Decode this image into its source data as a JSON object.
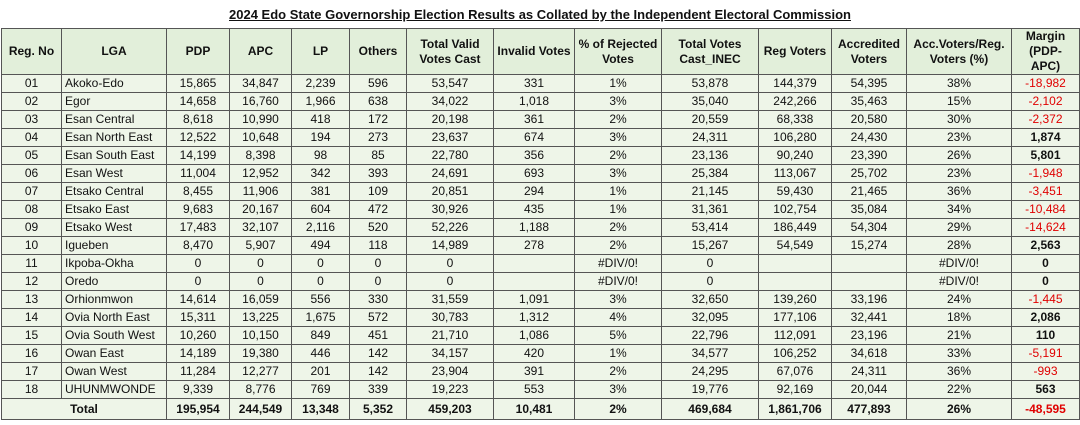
{
  "header": {
    "title": "2024 Edo State Governorship Election Results as Collated by the Independent Electoral Commission"
  },
  "table": {
    "columns": [
      "Reg. No",
      "LGA",
      "PDP",
      "APC",
      "LP",
      "Others",
      "Total Valid Votes Cast",
      "Invalid Votes",
      "% of Rejected Votes",
      "Total Votes Cast_INEC",
      "Reg Voters",
      "Accredited Voters",
      "Acc.Voters/Reg. Voters (%)",
      "Margin (PDP-APC)"
    ],
    "rows": [
      [
        "01",
        "Akoko-Edo",
        "15,865",
        "34,847",
        "2,239",
        "596",
        "53,547",
        "331",
        "1%",
        "53,878",
        "144,379",
        "54,395",
        "38%",
        "-18,982"
      ],
      [
        "02",
        "Egor",
        "14,658",
        "16,760",
        "1,966",
        "638",
        "34,022",
        "1,018",
        "3%",
        "35,040",
        "242,266",
        "35,463",
        "15%",
        "-2,102"
      ],
      [
        "03",
        "Esan Central",
        "8,618",
        "10,990",
        "418",
        "172",
        "20,198",
        "361",
        "2%",
        "20,559",
        "68,338",
        "20,580",
        "30%",
        "-2,372"
      ],
      [
        "04",
        "Esan North East",
        "12,522",
        "10,648",
        "194",
        "273",
        "23,637",
        "674",
        "3%",
        "24,311",
        "106,280",
        "24,430",
        "23%",
        "1,874"
      ],
      [
        "05",
        "Esan South East",
        "14,199",
        "8,398",
        "98",
        "85",
        "22,780",
        "356",
        "2%",
        "23,136",
        "90,240",
        "23,390",
        "26%",
        "5,801"
      ],
      [
        "06",
        "Esan West",
        "11,004",
        "12,952",
        "342",
        "393",
        "24,691",
        "693",
        "3%",
        "25,384",
        "113,067",
        "25,702",
        "23%",
        "-1,948"
      ],
      [
        "07",
        "Etsako Central",
        "8,455",
        "11,906",
        "381",
        "109",
        "20,851",
        "294",
        "1%",
        "21,145",
        "59,430",
        "21,465",
        "36%",
        "-3,451"
      ],
      [
        "08",
        "Etsako East",
        "9,683",
        "20,167",
        "604",
        "472",
        "30,926",
        "435",
        "1%",
        "31,361",
        "102,754",
        "35,084",
        "34%",
        "-10,484"
      ],
      [
        "09",
        "Etsako West",
        "17,483",
        "32,107",
        "2,116",
        "520",
        "52,226",
        "1,188",
        "2%",
        "53,414",
        "186,449",
        "54,304",
        "29%",
        "-14,624"
      ],
      [
        "10",
        "Igueben",
        "8,470",
        "5,907",
        "494",
        "118",
        "14,989",
        "278",
        "2%",
        "15,267",
        "54,549",
        "15,274",
        "28%",
        "2,563"
      ],
      [
        "11",
        "Ikpoba-Okha",
        "0",
        "0",
        "0",
        "0",
        "0",
        null,
        "#DIV/0!",
        "0",
        null,
        null,
        "#DIV/0!",
        "0"
      ],
      [
        "12",
        "Oredo",
        "0",
        "0",
        "0",
        "0",
        "0",
        null,
        "#DIV/0!",
        "0",
        null,
        null,
        "#DIV/0!",
        "0"
      ],
      [
        "13",
        "Orhionmwon",
        "14,614",
        "16,059",
        "556",
        "330",
        "31,559",
        "1,091",
        "3%",
        "32,650",
        "139,260",
        "33,196",
        "24%",
        "-1,445"
      ],
      [
        "14",
        "Ovia North East",
        "15,311",
        "13,225",
        "1,675",
        "572",
        "30,783",
        "1,312",
        "4%",
        "32,095",
        "177,106",
        "32,441",
        "18%",
        "2,086"
      ],
      [
        "15",
        "Ovia South West",
        "10,260",
        "10,150",
        "849",
        "451",
        "21,710",
        "1,086",
        "5%",
        "22,796",
        "112,091",
        "23,196",
        "21%",
        "110"
      ],
      [
        "16",
        "Owan East",
        "14,189",
        "19,380",
        "446",
        "142",
        "34,157",
        "420",
        "1%",
        "34,577",
        "106,252",
        "34,618",
        "33%",
        "-5,191"
      ],
      [
        "17",
        "Owan West",
        "11,284",
        "12,277",
        "201",
        "142",
        "23,904",
        "391",
        "2%",
        "24,295",
        "67,076",
        "24,311",
        "36%",
        "-993"
      ],
      [
        "18",
        "UHUNMWONDE",
        "9,339",
        "8,776",
        "769",
        "339",
        "19,223",
        "553",
        "3%",
        "19,776",
        "92,169",
        "20,044",
        "22%",
        "563"
      ]
    ],
    "total": {
      "label": "Total",
      "cells": [
        "195,954",
        "244,549",
        "13,348",
        "5,352",
        "459,203",
        "10,481",
        "2%",
        "469,684",
        "1,861,706",
        "477,893",
        "26%",
        "-48,595"
      ]
    }
  }
}
